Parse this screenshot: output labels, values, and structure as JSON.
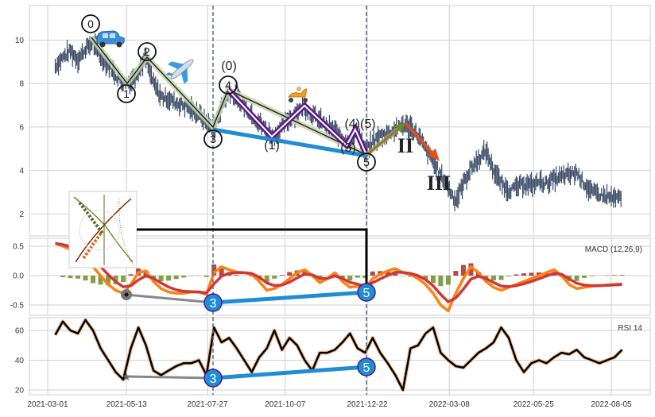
{
  "chart_data": [
    {
      "type": "line",
      "panel": "price",
      "title": "",
      "ylim": [
        0.9,
        11.6
      ],
      "yticks": [
        "2",
        "4",
        "6",
        "8",
        "10"
      ],
      "grid": true,
      "series": [
        {
          "start": "2021-03-08",
          "step_days": 7,
          "values": [
            8.8,
            9.2,
            9.5,
            9.1,
            9.6,
            9.9,
            9.2,
            8.9,
            8.4,
            8.0,
            8.1,
            8.6,
            9.2,
            8.0,
            7.4,
            7.3,
            7.1,
            7.0,
            6.8,
            6.6,
            6.2,
            5.9,
            6.9,
            7.6,
            7.3,
            7.0,
            6.6,
            6.2,
            5.8,
            5.6,
            6.0,
            6.4,
            6.7,
            6.9,
            6.6,
            6.3,
            6.0,
            5.8,
            5.5,
            5.3,
            5.8,
            4.8,
            5.3,
            5.6,
            5.7,
            5.9,
            6.1,
            6.0,
            5.6,
            5.0,
            4.4,
            3.8,
            3.2,
            2.6,
            3.4,
            4.1,
            4.5,
            4.9,
            4.0,
            3.4,
            3.1,
            3.2,
            3.4,
            3.3,
            3.5,
            3.4,
            3.6,
            3.7,
            3.8,
            3.9,
            3.4,
            3.0,
            2.9,
            2.8,
            2.7,
            2.7
          ],
          "color": "#3a4a66"
        }
      ],
      "wave_labels": {
        "primary": [
          "0",
          "1",
          "2",
          "3",
          "4",
          "5"
        ],
        "sub": [
          "(0)",
          "(1)",
          "(3)",
          "(4)(5)"
        ],
        "roman": [
          "II",
          "III"
        ]
      },
      "icons": [
        "car-icon",
        "airplane-icon",
        "scooter-icon",
        "inset-image"
      ]
    },
    {
      "type": "line",
      "panel": "macd",
      "label": "MACD (12,26,9)",
      "ylim": [
        -0.7,
        0.65
      ],
      "yticks": [
        "0.5",
        "0.0",
        "-0.5"
      ],
      "series": [
        {
          "start": "2021-03-08",
          "step_days": 7,
          "values": [
            0.55,
            0.5,
            0.45,
            0.4,
            0.3,
            0.15,
            0.0,
            -0.15,
            -0.25,
            -0.3,
            -0.15,
            0.05,
            0.08,
            -0.1,
            -0.22,
            -0.28,
            -0.3,
            -0.3,
            -0.28,
            -0.28,
            -0.32,
            0.05,
            0.15,
            0.1,
            0.06,
            0.05,
            0.02,
            -0.1,
            -0.25,
            -0.22,
            -0.15,
            -0.05,
            0.05,
            0.1,
            0.0,
            -0.12,
            -0.05,
            0.05,
            -0.1,
            -0.2,
            -0.18,
            -0.22,
            -0.05,
            0.02,
            0.08,
            0.12,
            0.05,
            0.02,
            -0.05,
            -0.15,
            -0.3,
            -0.5,
            -0.6,
            -0.3,
            -0.05,
            0.15,
            0.05,
            -0.1,
            -0.2,
            -0.25,
            -0.2,
            -0.15,
            -0.1,
            -0.05,
            0.0,
            0.05,
            0.1,
            0.0,
            -0.15,
            -0.22,
            -0.2,
            -0.18,
            -0.17,
            -0.16,
            -0.15,
            -0.14
          ],
          "color": "#ff8010"
        }
      ],
      "signal_color": "#d03838",
      "hist_pos_color": "#a52a2a",
      "hist_neg_color": "#6b8e23",
      "divergence_labels": [
        "3",
        "5"
      ]
    },
    {
      "type": "line",
      "panel": "rsi",
      "label": "RSI 14",
      "ylim": [
        15,
        70
      ],
      "yticks": [
        "20",
        "40",
        "60"
      ],
      "series": [
        {
          "start": "2021-03-08",
          "step_days": 7,
          "values": [
            57,
            66,
            60,
            58,
            67,
            60,
            48,
            40,
            32,
            27,
            48,
            62,
            50,
            33,
            30,
            33,
            36,
            38,
            38,
            40,
            30,
            62,
            52,
            55,
            48,
            40,
            32,
            42,
            48,
            60,
            47,
            55,
            50,
            40,
            33,
            45,
            45,
            47,
            52,
            58,
            48,
            45,
            55,
            45,
            38,
            30,
            20,
            48,
            50,
            58,
            62,
            45,
            40,
            36,
            35,
            40,
            45,
            48,
            52,
            62,
            55,
            40,
            32,
            38,
            40,
            38,
            42,
            45,
            44,
            47,
            42,
            40,
            38,
            40,
            42,
            47
          ],
          "color": "#000000"
        }
      ],
      "divergence_labels": [
        "3",
        "5"
      ]
    }
  ],
  "x_axis": {
    "ticks": [
      "2021-03-01",
      "2021-05-13",
      "2021-07-27",
      "2021-10-07",
      "2021-12-22",
      "2022-03-08",
      "2022-05-25",
      "2022-08-05"
    ]
  }
}
